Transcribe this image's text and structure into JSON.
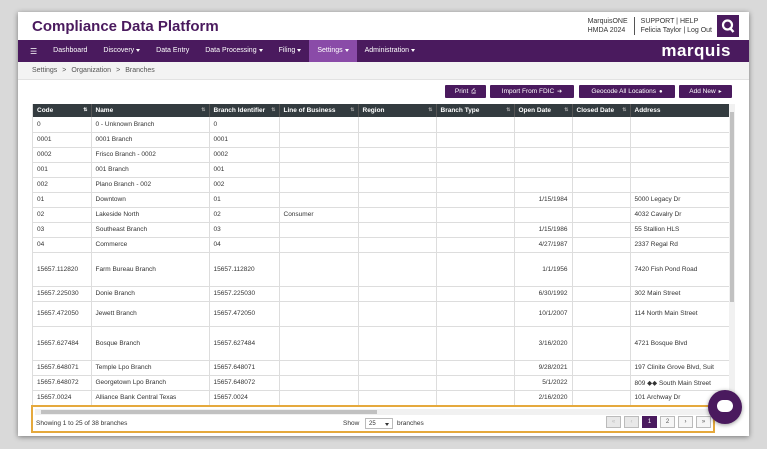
{
  "header": {
    "app_title": "Compliance Data Platform",
    "product_line1": "MarquisONE",
    "product_line2": "HMDA 2024",
    "support_line": "SUPPORT | HELP",
    "user_line": "Felicia Taylor | Log Out"
  },
  "nav": {
    "items": [
      {
        "label": "Dashboard",
        "dropdown": false
      },
      {
        "label": "Discovery",
        "dropdown": true
      },
      {
        "label": "Data Entry",
        "dropdown": false
      },
      {
        "label": "Data Processing",
        "dropdown": true
      },
      {
        "label": "Filing",
        "dropdown": true
      },
      {
        "label": "Settings",
        "dropdown": true,
        "active": true
      },
      {
        "label": "Administration",
        "dropdown": true
      }
    ],
    "brand": "marquis"
  },
  "breadcrumb": [
    "Settings",
    "Organization",
    "Branches"
  ],
  "toolbar": {
    "print": "Print",
    "import": "Import From FDIC",
    "geocode": "Geocode All Locations",
    "add_new": "Add New"
  },
  "table": {
    "columns": [
      "Code",
      "Name",
      "Branch Identifier",
      "Line of Business",
      "Region",
      "Branch Type",
      "Open Date",
      "Closed Date",
      "Address"
    ],
    "rows": [
      [
        "0",
        "0 - Unknown Branch",
        "0",
        "",
        "",
        "",
        "",
        "",
        ""
      ],
      [
        "0001",
        "0001 Branch",
        "0001",
        "",
        "",
        "",
        "",
        "",
        ""
      ],
      [
        "0002",
        "Frisco Branch - 0002",
        "0002",
        "",
        "",
        "",
        "",
        "",
        ""
      ],
      [
        "001",
        "001 Branch",
        "001",
        "",
        "",
        "",
        "",
        "",
        ""
      ],
      [
        "002",
        "Plano Branch - 002",
        "002",
        "",
        "",
        "",
        "",
        "",
        ""
      ],
      [
        "01",
        "Downtown",
        "01",
        "",
        "",
        "",
        "1/15/1984",
        "",
        "5000 Legacy Dr"
      ],
      [
        "02",
        "Lakeside North",
        "02",
        "Consumer",
        "",
        "",
        "",
        "",
        "4032 Cavalry Dr"
      ],
      [
        "03",
        "Southeast Branch",
        "03",
        "",
        "",
        "",
        "1/15/1986",
        "",
        "55 Stallion HLS"
      ],
      [
        "04",
        "Commerce",
        "04",
        "",
        "",
        "",
        "4/27/1987",
        "",
        "2337 Regal Rd"
      ],
      [
        "15657.112820",
        "Farm Bureau Branch",
        "15657.112820",
        "",
        "",
        "",
        "1/1/1956",
        "",
        "7420 Fish Pond Road"
      ],
      [
        "15657.225030",
        "Donie Branch",
        "15657.225030",
        "",
        "",
        "",
        "6/30/1992",
        "",
        "302 Main Street"
      ],
      [
        "15657.472050",
        "Jewett Branch",
        "15657.472050",
        "",
        "",
        "",
        "10/1/2007",
        "",
        "114 North Main Street"
      ],
      [
        "15657.627484",
        "Bosque Branch",
        "15657.627484",
        "",
        "",
        "",
        "3/16/2020",
        "",
        "4721 Bosque Blvd"
      ],
      [
        "15657.648071",
        "Temple Lpo Branch",
        "15657.648071",
        "",
        "",
        "",
        "9/28/2021",
        "",
        "197 Clinite Grove Blvd, Suit"
      ],
      [
        "15657.648072",
        "Georgetown Lpo Branch",
        "15657.648072",
        "",
        "",
        "",
        "5/1/2022",
        "",
        "809 ◆◆ South Main Street"
      ],
      [
        "15657.0024",
        "Alliance Bank Central Texas",
        "15657.0024",
        "",
        "",
        "",
        "2/16/2020",
        "",
        "101 Archway Dr"
      ]
    ]
  },
  "footer": {
    "showing": "Showing 1 to 25 of 38 branches",
    "show_label": "Show",
    "page_size": "25",
    "branches_label": "branches",
    "pages": [
      "1",
      "2"
    ]
  }
}
